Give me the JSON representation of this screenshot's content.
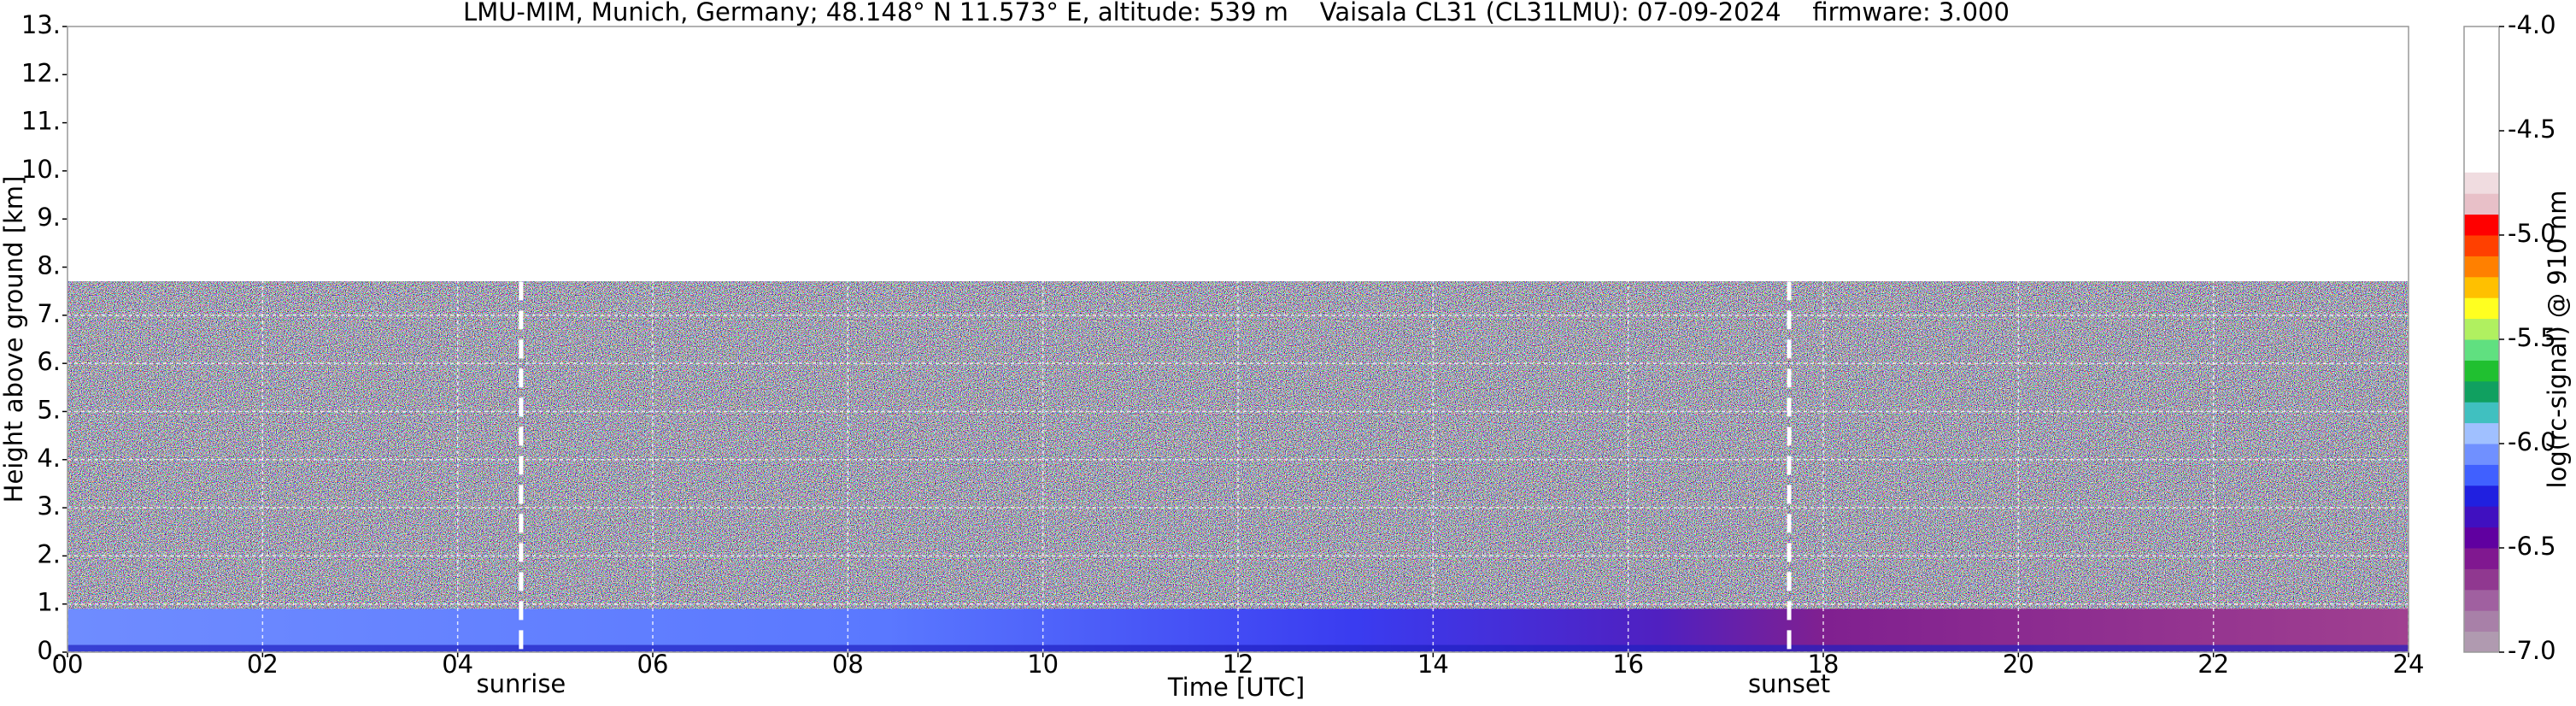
{
  "chart_data": {
    "type": "heatmap",
    "title": "LMU-MIM, Munich, Germany; 48.148° N 11.573° E, altitude: 539 m    Vaisala CL31 (CL31LMU): 07-09-2024    firmware: 3.000",
    "x_label": "Time [UTC]",
    "y_label": "Height above ground [km]",
    "xlim": [
      0,
      24
    ],
    "xticks": [
      {
        "value": 0,
        "label": "00"
      },
      {
        "value": 2,
        "label": "02"
      },
      {
        "value": 4,
        "label": "04"
      },
      {
        "value": 6,
        "label": "06"
      },
      {
        "value": 8,
        "label": "08"
      },
      {
        "value": 10,
        "label": "10"
      },
      {
        "value": 12,
        "label": "12"
      },
      {
        "value": 14,
        "label": "14"
      },
      {
        "value": 16,
        "label": "16"
      },
      {
        "value": 18,
        "label": "18"
      },
      {
        "value": 20,
        "label": "20"
      },
      {
        "value": 22,
        "label": "22"
      },
      {
        "value": 24,
        "label": "24"
      }
    ],
    "ylim": [
      0,
      13
    ],
    "yticks": [
      {
        "value": 0,
        "label": "0."
      },
      {
        "value": 1,
        "label": "1."
      },
      {
        "value": 2,
        "label": "2."
      },
      {
        "value": 3,
        "label": "3."
      },
      {
        "value": 4,
        "label": "4."
      },
      {
        "value": 5,
        "label": "5."
      },
      {
        "value": 6,
        "label": "6."
      },
      {
        "value": 7,
        "label": "7."
      },
      {
        "value": 8,
        "label": "8."
      },
      {
        "value": 9,
        "label": "9."
      },
      {
        "value": 10,
        "label": "10."
      },
      {
        "value": 11,
        "label": "11."
      },
      {
        "value": 12,
        "label": "12."
      },
      {
        "value": 13,
        "label": "13."
      }
    ],
    "grid": true,
    "annotations": [
      {
        "label": "sunrise",
        "x": 4.65
      },
      {
        "label": "sunset",
        "x": 17.65
      }
    ],
    "colorbar": {
      "label": "log(rc-signal) @ 910 nm",
      "lim": [
        -7,
        -4
      ],
      "ticks": [
        {
          "value": -4,
          "label": "-4.0"
        },
        -4.5,
        {
          "value": -5,
          "label": "-5.0"
        },
        -5.5,
        {
          "value": -6,
          "label": "-6.0"
        },
        -6.5,
        {
          "value": -7,
          "label": "-7.0"
        }
      ],
      "colors": [
        "#b09ab0",
        "#a880a8",
        "#a060a0",
        "#903890",
        "#801890",
        "#6000a0",
        "#4010c0",
        "#2020e0",
        "#4060ff",
        "#7090ff",
        "#a0c0ff",
        "#40c0c0",
        "#10a060",
        "#20c030",
        "#60e080",
        "#b0f060",
        "#ffff20",
        "#ffc000",
        "#ff8000",
        "#ff4000",
        "#ff0000",
        "#e8c0c8",
        "#f0dce0"
      ]
    }
  }
}
